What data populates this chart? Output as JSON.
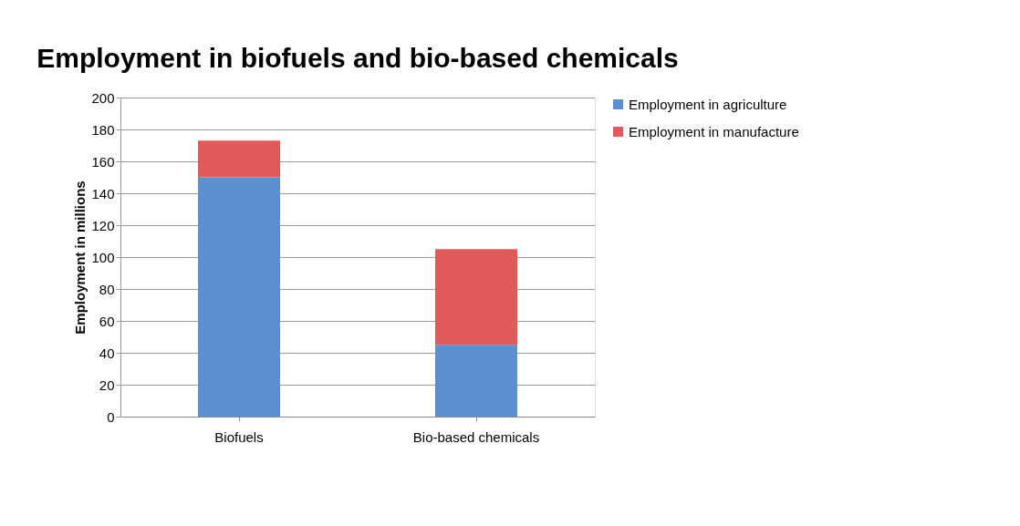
{
  "chart_data": {
    "type": "bar",
    "title": "Employment in biofuels and bio-based chemicals",
    "ylabel": "Employment in millions",
    "categories": [
      "Biofuels",
      "Bio-based chemicals"
    ],
    "stacked": true,
    "series": [
      {
        "name": "Employment in agriculture",
        "color": "#5b8fd0",
        "values": [
          150,
          45
        ]
      },
      {
        "name": "Employment in manufacture",
        "color": "#e05a5a",
        "values": [
          23,
          60
        ]
      }
    ],
    "ylim": [
      0,
      200
    ],
    "yticks": [
      0,
      20,
      40,
      60,
      80,
      100,
      120,
      140,
      160,
      180,
      200
    ],
    "grid": "y",
    "legend": "right"
  }
}
